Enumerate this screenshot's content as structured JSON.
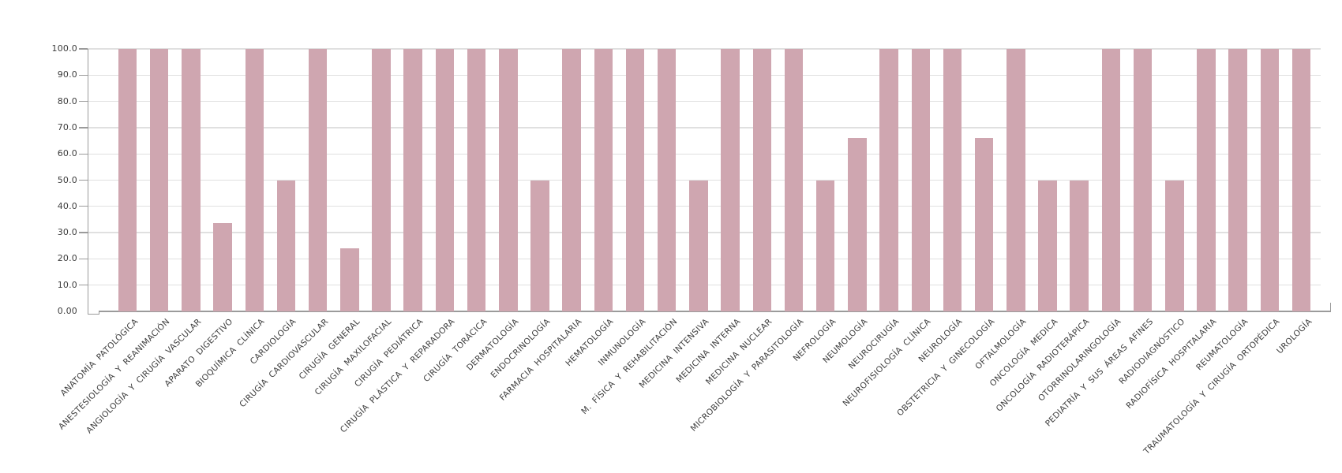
{
  "chart_data": {
    "type": "bar",
    "title": "",
    "xlabel": "",
    "ylabel": "",
    "ylim": [
      0,
      100
    ],
    "grid": true,
    "legend_position": "none",
    "y_tick_labels": [
      "100.0",
      "90.0",
      "80.0",
      "70.0",
      "60.0",
      "50.0",
      "40.0",
      "30.0",
      "20.0",
      "10.0",
      "0.00"
    ],
    "categories": [
      "ANATOMÍA PATOLÓGICA",
      "ANESTESIOLOGÍA Y REANIMACIÓN",
      "ANGIOLOGÍA Y CIRUGÍA VASCULAR",
      "APARATO DIGESTIVO",
      "BIOQUÍMICA CLÍNICA",
      "CARDIOLOGÍA",
      "CIRUGÍA CARDIOVASCULAR",
      "CIRUGÍA GENERAL",
      "CIRUGÍA MAXILOFACIAL",
      "CIRUGÍA PEDIÁTRICA",
      "CIRUGÍA PLÁSTICA Y REPARADORA",
      "CIRUGÍA TORÁCICA",
      "DERMATOLOGÍA",
      "ENDOCRINOLOGÍA",
      "FARMACIA HOSPITALARIA",
      "HEMATOLOGÍA",
      "INMUNOLOGÍA",
      "M. FÍSICA Y REHABILITACIÓN",
      "MEDICINA INTENSIVA",
      "MEDICINA INTERNA",
      "MEDICINA NUCLEAR",
      "MICROBIOLOGÍA Y PARASITOLOGÍA",
      "NEFROLOGÍA",
      "NEUMOLOGÍA",
      "NEUROCIRUGÍA",
      "NEUROFISIOLOGÍA CLÍNICA",
      "NEUROLOGÍA",
      "OBSTETRICIA Y GINECOLOGÍA",
      "OFTALMOLOGÍA",
      "ONCOLOGÍA MEDICA",
      "ONCOLOGÍA RADIOTERÁPICA",
      "OTORRINOLARINGOLOGÍA",
      "PEDIATRÍA Y SUS ÁREAS AFINES",
      "RADIODIAGNÓSTICO",
      "RADIOFÍSICA HOSPITALARIA",
      "REUMATOLOGÍA",
      "TRAUMATOLOGÍA Y CIRUGÍA ORTOPÉDICA",
      "UROLOGÍA"
    ],
    "values": [
      100,
      100,
      100,
      33.5,
      100,
      50,
      100,
      24,
      100,
      100,
      100,
      100,
      100,
      50,
      100,
      100,
      100,
      100,
      50,
      100,
      100,
      100,
      50,
      66,
      100,
      100,
      100,
      66,
      100,
      50,
      50,
      100,
      100,
      50,
      100,
      100,
      100,
      100
    ],
    "colors": {
      "bar": "#cfa6b0",
      "grid": "#e0e0e0",
      "axis": "#9b9b9b",
      "text": "#3d3d3d"
    }
  }
}
